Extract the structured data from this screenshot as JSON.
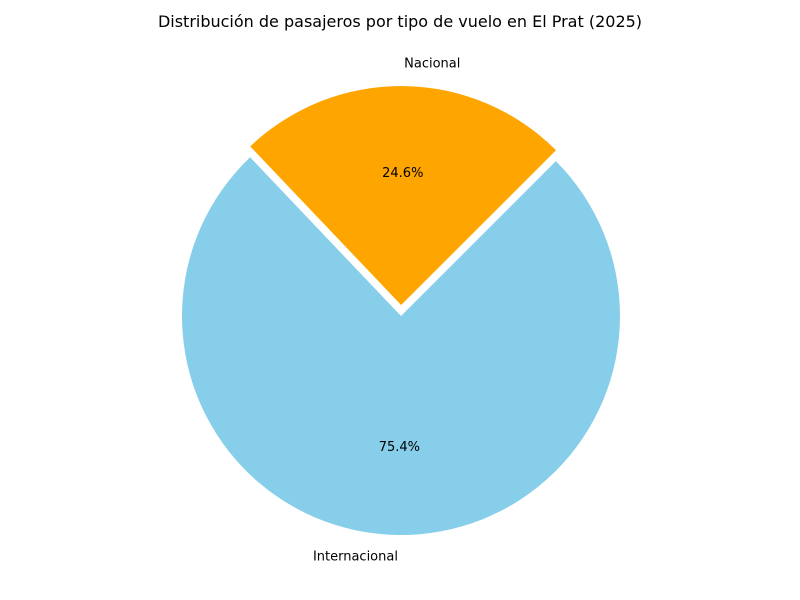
{
  "chart_data": {
    "type": "pie",
    "title": "Distribución de pasajeros por tipo de vuelo en El Prat (2025)",
    "slices": [
      {
        "label": "Nacional",
        "value": 24.6,
        "pct_label": "24.6%",
        "color": "#FFA500",
        "exploded": true
      },
      {
        "label": "Internacional",
        "value": 75.4,
        "pct_label": "75.4%",
        "color": "#87CEEB",
        "exploded": false
      }
    ]
  }
}
